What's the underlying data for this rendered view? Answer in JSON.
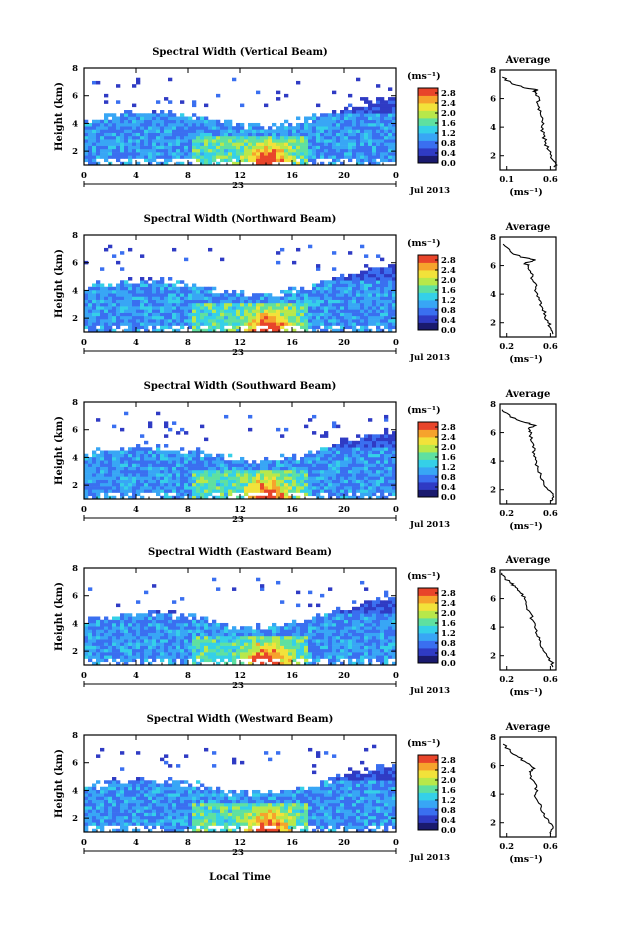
{
  "figure": {
    "xlabel_bottom": "Local Time",
    "date_marker": "23",
    "month_label": "Jul 2013",
    "colorbar_unit": "(ms⁻¹)",
    "average_title": "Average",
    "average_unit": "(ms⁻¹)",
    "height_label": "Height (km)"
  },
  "chart_data": [
    {
      "type": "heatmap",
      "title": "Spectral Width (Vertical Beam)",
      "ylabel": "Height (km)",
      "x_ticks": [
        "0",
        "4",
        "8",
        "12",
        "16",
        "20",
        "0"
      ],
      "y_ticks": [
        "2",
        "4",
        "6",
        "8"
      ],
      "xlim": [
        0,
        24
      ],
      "ylim": [
        1,
        8
      ],
      "colorbar": {
        "unit": "(ms⁻¹)",
        "ticks": [
          "0.0",
          "0.4",
          "0.8",
          "1.2",
          "1.6",
          "2.0",
          "2.4",
          "2.8"
        ],
        "range": [
          0.0,
          3.0
        ]
      },
      "profile": {
        "type": "line",
        "title": "Average",
        "xlabel": "(ms⁻¹)",
        "x_ticks": [
          "0.1",
          "0.6"
        ],
        "xlim": [
          0.1,
          0.6
        ],
        "ylim": [
          1,
          8
        ],
        "y_ticks": [
          "2",
          "4",
          "6",
          "8"
        ],
        "x": [
          0.58,
          0.6,
          0.56,
          0.52,
          0.5,
          0.49,
          0.47,
          0.48,
          0.46,
          0.44,
          0.45,
          0.42,
          0.4,
          0.44,
          0.3,
          0.2,
          0.12
        ],
        "y": [
          1.2,
          1.5,
          2.0,
          2.5,
          3.0,
          3.5,
          4.0,
          4.5,
          5.0,
          5.5,
          6.0,
          6.3,
          6.5,
          6.6,
          6.8,
          7.1,
          7.5
        ]
      }
    },
    {
      "type": "heatmap",
      "title": "Spectral Width (Northward Beam)",
      "ylabel": "Height (km)",
      "x_ticks": [
        "0",
        "4",
        "8",
        "12",
        "16",
        "20",
        "0"
      ],
      "y_ticks": [
        "2",
        "4",
        "6",
        "8"
      ],
      "xlim": [
        0,
        24
      ],
      "ylim": [
        1,
        8
      ],
      "colorbar": {
        "unit": "(ms⁻¹)",
        "ticks": [
          "0.0",
          "0.4",
          "0.8",
          "1.2",
          "1.6",
          "2.0",
          "2.4",
          "2.8"
        ],
        "range": [
          0.0,
          3.0
        ]
      },
      "profile": {
        "type": "line",
        "title": "Average",
        "xlabel": "(ms⁻¹)",
        "x_ticks": [
          "0.2",
          "0.6"
        ],
        "xlim": [
          0.1,
          0.65
        ],
        "ylim": [
          1,
          8
        ],
        "y_ticks": [
          "2",
          "4",
          "6",
          "8"
        ],
        "x": [
          0.62,
          0.6,
          0.57,
          0.55,
          0.52,
          0.5,
          0.47,
          0.45,
          0.42,
          0.4,
          0.38,
          0.35,
          0.45,
          0.3,
          0.2,
          0.13
        ],
        "y": [
          1.2,
          1.6,
          2.0,
          2.5,
          3.0,
          3.5,
          4.0,
          4.5,
          5.0,
          5.5,
          5.9,
          6.2,
          6.4,
          6.6,
          7.0,
          7.5
        ]
      }
    },
    {
      "type": "heatmap",
      "title": "Spectral Width (Southward Beam)",
      "ylabel": "Height (km)",
      "x_ticks": [
        "0",
        "4",
        "8",
        "12",
        "16",
        "20",
        "0"
      ],
      "y_ticks": [
        "2",
        "4",
        "6",
        "8"
      ],
      "xlim": [
        0,
        24
      ],
      "ylim": [
        1,
        8
      ],
      "colorbar": {
        "unit": "(ms⁻¹)",
        "ticks": [
          "0.0",
          "0.4",
          "0.8",
          "1.2",
          "1.6",
          "2.0",
          "2.4",
          "2.8"
        ],
        "range": [
          0.0,
          3.0
        ]
      },
      "profile": {
        "type": "line",
        "title": "Average",
        "xlabel": "(ms⁻¹)",
        "x_ticks": [
          "0.2",
          "0.6"
        ],
        "xlim": [
          0.1,
          0.65
        ],
        "ylim": [
          1,
          8
        ],
        "y_ticks": [
          "2",
          "4",
          "6",
          "8"
        ],
        "x": [
          0.6,
          0.62,
          0.57,
          0.53,
          0.5,
          0.47,
          0.46,
          0.44,
          0.42,
          0.4,
          0.41,
          0.38,
          0.45,
          0.35,
          0.2,
          0.12
        ],
        "y": [
          1.2,
          1.6,
          2.0,
          2.5,
          3.0,
          3.5,
          4.0,
          4.5,
          5.0,
          5.5,
          6.0,
          6.3,
          6.5,
          6.7,
          7.1,
          7.6
        ]
      }
    },
    {
      "type": "heatmap",
      "title": "Spectral Width (Eastward Beam)",
      "ylabel": "Height (km)",
      "x_ticks": [
        "0",
        "4",
        "8",
        "12",
        "16",
        "20",
        "0"
      ],
      "y_ticks": [
        "2",
        "4",
        "6",
        "8"
      ],
      "xlim": [
        0,
        24
      ],
      "ylim": [
        1,
        8
      ],
      "colorbar": {
        "unit": "(ms⁻¹)",
        "ticks": [
          "0.0",
          "0.4",
          "0.8",
          "1.2",
          "1.6",
          "2.0",
          "2.4",
          "2.8"
        ],
        "range": [
          0.0,
          3.0
        ]
      },
      "profile": {
        "type": "line",
        "title": "Average",
        "xlabel": "(ms⁻¹)",
        "x_ticks": [
          "0.2",
          "0.6"
        ],
        "xlim": [
          0.1,
          0.65
        ],
        "ylim": [
          1,
          8
        ],
        "y_ticks": [
          "2",
          "4",
          "6",
          "8"
        ],
        "x": [
          0.62,
          0.6,
          0.56,
          0.52,
          0.5,
          0.46,
          0.44,
          0.42,
          0.4,
          0.36,
          0.34,
          0.3,
          0.25,
          0.2,
          0.15,
          0.12
        ],
        "y": [
          1.2,
          1.6,
          2.0,
          2.5,
          3.0,
          3.5,
          4.0,
          4.5,
          5.0,
          5.5,
          6.0,
          6.4,
          6.8,
          7.1,
          7.4,
          7.8
        ]
      }
    },
    {
      "type": "heatmap",
      "title": "Spectral Width (Westward Beam)",
      "ylabel": "Height (km)",
      "x_ticks": [
        "0",
        "4",
        "8",
        "12",
        "16",
        "20",
        "0"
      ],
      "y_ticks": [
        "2",
        "4",
        "6",
        "8"
      ],
      "xlim": [
        0,
        24
      ],
      "ylim": [
        1,
        8
      ],
      "colorbar": {
        "unit": "(ms⁻¹)",
        "ticks": [
          "0.0",
          "0.4",
          "0.8",
          "1.2",
          "1.6",
          "2.0",
          "2.4",
          "2.8"
        ],
        "range": [
          0.0,
          3.0
        ]
      },
      "profile": {
        "type": "line",
        "title": "Average",
        "xlabel": "(ms⁻¹)",
        "x_ticks": [
          "0.2",
          "0.6"
        ],
        "xlim": [
          0.1,
          0.65
        ],
        "ylim": [
          1,
          8
        ],
        "y_ticks": [
          "2",
          "4",
          "6",
          "8"
        ],
        "x": [
          0.6,
          0.62,
          0.58,
          0.53,
          0.5,
          0.47,
          0.45,
          0.46,
          0.42,
          0.4,
          0.44,
          0.36,
          0.28,
          0.2,
          0.13
        ],
        "y": [
          1.2,
          1.6,
          2.0,
          2.5,
          3.0,
          3.5,
          4.0,
          4.5,
          5.0,
          5.5,
          5.8,
          6.2,
          6.6,
          7.0,
          7.5
        ]
      }
    }
  ],
  "colormap": [
    "#1a1a6e",
    "#2f3bc4",
    "#3a6ff0",
    "#38a6f5",
    "#35d0e8",
    "#5fe0a0",
    "#b8e84a",
    "#f2e23a",
    "#f6a32c",
    "#e8452a"
  ]
}
